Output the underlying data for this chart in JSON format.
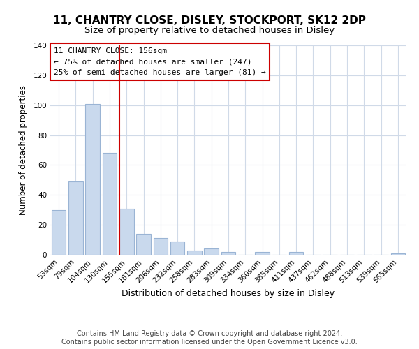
{
  "title": "11, CHANTRY CLOSE, DISLEY, STOCKPORT, SK12 2DP",
  "subtitle": "Size of property relative to detached houses in Disley",
  "xlabel": "Distribution of detached houses by size in Disley",
  "ylabel": "Number of detached properties",
  "categories": [
    "53sqm",
    "79sqm",
    "104sqm",
    "130sqm",
    "155sqm",
    "181sqm",
    "206sqm",
    "232sqm",
    "258sqm",
    "283sqm",
    "309sqm",
    "334sqm",
    "360sqm",
    "385sqm",
    "411sqm",
    "437sqm",
    "462sqm",
    "488sqm",
    "513sqm",
    "539sqm",
    "565sqm"
  ],
  "values": [
    30,
    49,
    101,
    68,
    31,
    14,
    11,
    9,
    3,
    4,
    2,
    0,
    2,
    0,
    2,
    0,
    0,
    0,
    0,
    0,
    1
  ],
  "bar_color": "#c9d9ed",
  "bar_edge_color": "#9ab4d4",
  "highlight_bar_index": 4,
  "red_line_color": "#cc0000",
  "annotation_box_text": "11 CHANTRY CLOSE: 156sqm\n← 75% of detached houses are smaller (247)\n25% of semi-detached houses are larger (81) →",
  "box_edge_color": "#cc0000",
  "ylim": [
    0,
    140
  ],
  "yticks": [
    0,
    20,
    40,
    60,
    80,
    100,
    120,
    140
  ],
  "footer_text": "Contains HM Land Registry data © Crown copyright and database right 2024.\nContains public sector information licensed under the Open Government Licence v3.0.",
  "title_fontsize": 11,
  "subtitle_fontsize": 9.5,
  "xlabel_fontsize": 9,
  "ylabel_fontsize": 8.5,
  "tick_fontsize": 7.5,
  "annotation_fontsize": 8,
  "footer_fontsize": 7,
  "background_color": "#ffffff",
  "grid_color": "#d0dae8"
}
